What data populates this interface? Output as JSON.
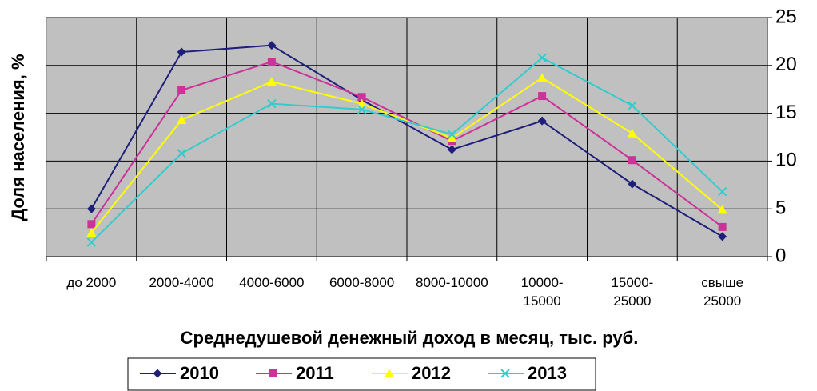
{
  "chart_data": {
    "type": "line",
    "xlabel": "Среднедушевой денежный доход в месяц, тыс. руб.",
    "ylabel": "Доля населения, %",
    "categories": [
      "до 2000",
      "2000-4000",
      "4000-6000",
      "6000-8000",
      "8000-10000",
      "10000-\n15000",
      "15000-\n25000",
      "свыше\n25000"
    ],
    "series": [
      {
        "name": "2010",
        "color": "#1f1f7a",
        "marker": "diamond",
        "values": [
          5.0,
          21.4,
          22.1,
          16.4,
          11.2,
          14.2,
          7.6,
          2.1
        ]
      },
      {
        "name": "2011",
        "color": "#cc3399",
        "marker": "square",
        "values": [
          3.4,
          17.4,
          20.4,
          16.7,
          12.1,
          16.8,
          10.1,
          3.1
        ]
      },
      {
        "name": "2012",
        "color": "#ffff00",
        "marker": "triangle",
        "values": [
          2.5,
          14.3,
          18.3,
          16.0,
          12.4,
          18.7,
          12.9,
          4.9
        ]
      },
      {
        "name": "2013",
        "color": "#33cccc",
        "marker": "x",
        "values": [
          1.5,
          10.8,
          16.0,
          15.4,
          12.8,
          20.8,
          15.8,
          6.8
        ]
      }
    ],
    "ylim": [
      0,
      25
    ],
    "yticks": [
      0,
      5,
      10,
      15,
      20,
      25
    ],
    "grid": true,
    "legend": "bottom"
  }
}
